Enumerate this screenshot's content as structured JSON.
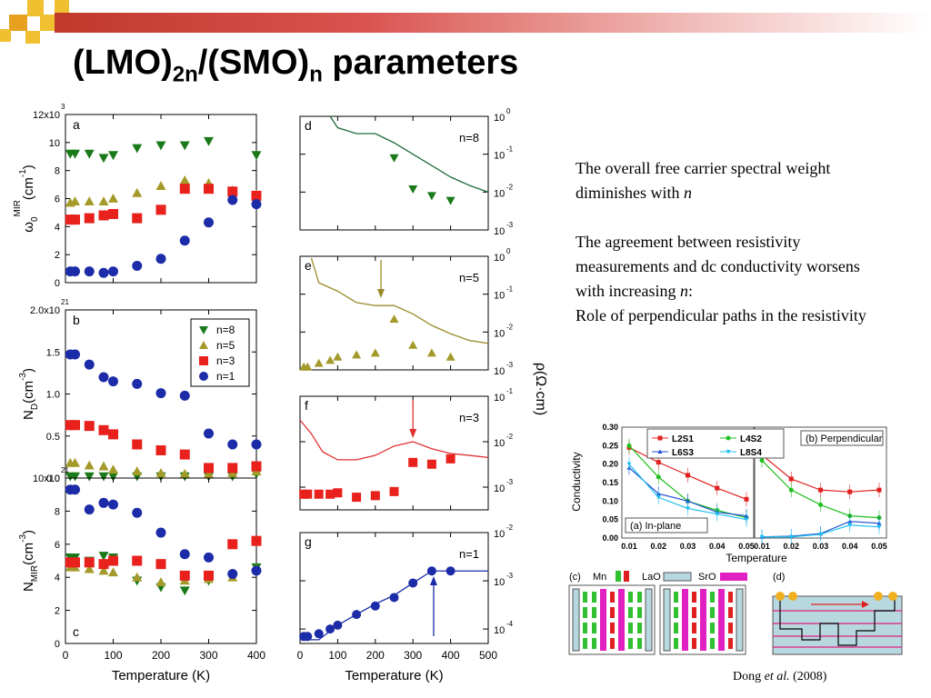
{
  "slide": {
    "title_main": "(LMO)",
    "title_sub1": "2n",
    "title_mid": "/(SMO)",
    "title_sub2": "n",
    "title_end": " parameters",
    "notes": [
      {
        "text": "The overall free carrier spectral weight diminishes with ",
        "em": "n",
        "after": ""
      },
      {
        "text": "The agreement between resistivity measurements and dc conductivity worsens with increasing ",
        "em": "n",
        "after": ":"
      },
      {
        "text": "Role of perpendicular paths in the resistivity",
        "em": "",
        "after": ""
      }
    ],
    "citation_author": "Dong ",
    "citation_etal": "et al.",
    "citation_year": " (2008)"
  },
  "colors": {
    "n8": "#1a7a1a",
    "n5": "#a49a2a",
    "n3": "#e8211c",
    "n1": "#1c2ba8",
    "line_d": "#1f6b3a",
    "line_e": "#9a8a2a",
    "line_f": "#e03030",
    "line_g": "#1c2ba8",
    "L2S1": "#e02020",
    "L4S2": "#20c020",
    "L6S3": "#2050d0",
    "L8S4": "#20c0f0",
    "topbar": "#c0392b",
    "accent": "#e8a020"
  },
  "chart_data": [
    {
      "id": "a",
      "type": "scatter",
      "label": "a",
      "ylabel": "ω0 MIR (cm -1)",
      "ylabel_main": "ω",
      "ylabel_sub": "0",
      "ylabel_sup": "MIR",
      "ylabel_unit": "(cm",
      "ylabel_unit_sup": "-1",
      "ylabel_close": ")",
      "xlim": [
        0,
        400
      ],
      "ylim": [
        0,
        12000
      ],
      "yticks": [
        "0",
        "2",
        "4",
        "6",
        "8",
        "10",
        "12x10"
      ],
      "yexp": "3",
      "series": [
        {
          "name": "n=8",
          "marker": "tri-down",
          "x": [
            10,
            20,
            50,
            80,
            100,
            150,
            200,
            250,
            300,
            400
          ],
          "y": [
            9200,
            9200,
            9200,
            8900,
            9100,
            9600,
            9800,
            9800,
            10100,
            9100
          ]
        },
        {
          "name": "n=5",
          "marker": "tri-up",
          "x": [
            10,
            20,
            50,
            80,
            100,
            150,
            200,
            250,
            300,
            350,
            400
          ],
          "y": [
            5700,
            5800,
            5800,
            5800,
            6000,
            6400,
            6900,
            7300,
            7100,
            6600,
            6300
          ]
        },
        {
          "name": "n=3",
          "marker": "square",
          "x": [
            10,
            20,
            50,
            80,
            100,
            150,
            200,
            250,
            300,
            350,
            400
          ],
          "y": [
            4500,
            4500,
            4600,
            4800,
            4900,
            4600,
            5200,
            6700,
            6700,
            6500,
            6200
          ]
        },
        {
          "name": "n=1",
          "marker": "circle",
          "x": [
            10,
            20,
            50,
            80,
            100,
            150,
            200,
            250,
            300,
            350,
            400
          ],
          "y": [
            800,
            800,
            800,
            700,
            800,
            1200,
            1700,
            3000,
            4300,
            5900,
            5600
          ]
        }
      ]
    },
    {
      "id": "b",
      "type": "scatter",
      "label": "b",
      "ylabel_main": "N",
      "ylabel_sub": "D",
      "ylabel_unit": "(cm",
      "ylabel_unit_sup": "-3",
      "ylabel_close": ")",
      "xlim": [
        0,
        400
      ],
      "ylim": [
        0,
        2e+21
      ],
      "yticks": [
        "0.0",
        "0.5",
        "1.0",
        "1.5",
        "2.0x10"
      ],
      "yexp": "21",
      "legend": {
        "placement": "top-right",
        "entries": [
          "n=8",
          "n=5",
          "n=3",
          "n=1"
        ]
      },
      "series": [
        {
          "name": "n=8",
          "marker": "tri-down",
          "x": [
            10,
            20,
            50,
            80,
            100,
            150,
            200,
            250,
            300,
            350,
            400
          ],
          "y": [
            2e+19,
            2e+19,
            2e+19,
            2e+19,
            2e+19,
            2e+19,
            2e+19,
            2e+19,
            2e+19,
            2e+19,
            5e+19
          ]
        },
        {
          "name": "n=5",
          "marker": "tri-up",
          "x": [
            10,
            20,
            50,
            80,
            100,
            150,
            200,
            250,
            300,
            350,
            400
          ],
          "y": [
            1.8e+20,
            1.8e+20,
            1.5e+20,
            1.4e+20,
            1e+20,
            8e+19,
            6e+19,
            5e+19,
            5e+19,
            6e+19,
            8e+19
          ]
        },
        {
          "name": "n=3",
          "marker": "square",
          "x": [
            10,
            20,
            50,
            80,
            100,
            150,
            200,
            250,
            300,
            350,
            400
          ],
          "y": [
            6.3e+20,
            6.3e+20,
            6.2e+20,
            5.7e+20,
            5.2e+20,
            4e+20,
            3.3e+20,
            2.8e+20,
            1.2e+20,
            1.2e+20,
            1.4e+20
          ]
        },
        {
          "name": "n=1",
          "marker": "circle",
          "x": [
            10,
            20,
            50,
            80,
            100,
            150,
            200,
            250,
            300,
            350,
            400
          ],
          "y": [
            1.47e+21,
            1.47e+21,
            1.35e+21,
            1.2e+21,
            1.15e+21,
            1.12e+21,
            1.01e+21,
            9.8e+20,
            5.3e+20,
            4e+20,
            4e+20
          ]
        }
      ]
    },
    {
      "id": "c",
      "type": "scatter",
      "label": "c",
      "ylabel_main": "N",
      "ylabel_sub": "MIR",
      "ylabel_unit": "(cm",
      "ylabel_unit_sup": "-3",
      "ylabel_close": ")",
      "xlim": [
        0,
        400
      ],
      "ylim": [
        0,
        1e+22
      ],
      "xlabel": "Temperature (K)",
      "xticks": [
        "0",
        "100",
        "200",
        "300",
        "400"
      ],
      "yticks": [
        "0",
        "2",
        "4",
        "6",
        "8",
        "10x10"
      ],
      "yexp": "21",
      "series": [
        {
          "name": "n=8",
          "marker": "tri-down",
          "x": [
            10,
            20,
            50,
            80,
            100,
            150,
            200,
            250,
            300,
            350,
            400
          ],
          "y": [
            5.2e+21,
            5.2e+21,
            5e+21,
            5.3e+21,
            5.2e+21,
            3.8e+21,
            3.4e+21,
            3.2e+21,
            3.8e+21,
            4.1e+21,
            4.6e+21
          ]
        },
        {
          "name": "n=5",
          "marker": "tri-up",
          "x": [
            10,
            20,
            50,
            80,
            100,
            150,
            200,
            250,
            300,
            350,
            400
          ],
          "y": [
            4.6e+21,
            4.6e+21,
            4.5e+21,
            4.4e+21,
            4.3e+21,
            4e+21,
            3.7e+21,
            3.8e+21,
            3.9e+21,
            4e+21,
            4.5e+21
          ]
        },
        {
          "name": "n=3",
          "marker": "square",
          "x": [
            10,
            20,
            50,
            80,
            100,
            150,
            200,
            250,
            300,
            350,
            400
          ],
          "y": [
            4.9e+21,
            4.9e+21,
            4.9e+21,
            4.8e+21,
            5e+21,
            5e+21,
            4.8e+21,
            4.1e+21,
            4.1e+21,
            6e+21,
            6.2e+21
          ]
        },
        {
          "name": "n=1",
          "marker": "circle",
          "x": [
            10,
            20,
            50,
            80,
            100,
            150,
            200,
            250,
            300,
            350,
            400
          ],
          "y": [
            9.3e+21,
            9.3e+21,
            8.1e+21,
            8.5e+21,
            8.4e+21,
            7.9e+21,
            6.7e+21,
            5.4e+21,
            5.2e+21,
            4.2e+21,
            4.4e+21
          ]
        }
      ]
    },
    {
      "id": "d",
      "type": "line+scatter",
      "label": "d",
      "annot": "n=8",
      "yscale": "log",
      "xlim": [
        0,
        500
      ],
      "ylog": [
        -3,
        0
      ],
      "yticks_base": [
        "10",
        "10",
        "10",
        "10"
      ],
      "yticks_exp": [
        "0",
        "-1",
        "-2",
        "-3"
      ],
      "curve": {
        "x": [
          80,
          100,
          150,
          200,
          250,
          300,
          350,
          400,
          450,
          500
        ],
        "y": [
          1.0,
          0.5,
          0.35,
          0.35,
          0.2,
          0.1,
          0.05,
          0.025,
          0.015,
          0.01
        ]
      },
      "points": {
        "x": [
          250,
          300,
          350,
          400
        ],
        "y": [
          0.08,
          0.012,
          0.008,
          0.006
        ]
      }
    },
    {
      "id": "e",
      "type": "line+scatter",
      "label": "e",
      "annot": "n=5",
      "yscale": "log",
      "xlim": [
        0,
        500
      ],
      "ylog": [
        -3,
        0
      ],
      "yticks_base": [
        "10",
        "10",
        "10",
        "10"
      ],
      "yticks_exp": [
        "0",
        "-1",
        "-2",
        "-3"
      ],
      "curve": {
        "x": [
          30,
          50,
          100,
          150,
          200,
          250,
          300,
          350,
          400,
          450,
          500
        ],
        "y": [
          0.9,
          0.2,
          0.12,
          0.06,
          0.05,
          0.05,
          0.03,
          0.015,
          0.009,
          0.006,
          0.005
        ]
      },
      "points": {
        "x": [
          10,
          20,
          50,
          80,
          100,
          150,
          200,
          250,
          300,
          350,
          400
        ],
        "y": [
          0.0012,
          0.0012,
          0.0015,
          0.0018,
          0.0022,
          0.0025,
          0.0028,
          0.022,
          0.0045,
          0.0028,
          0.0022
        ]
      },
      "arrow_x": 215
    },
    {
      "id": "f",
      "type": "line+scatter",
      "label": "f",
      "annot": "n=3",
      "yscale": "log",
      "xlim": [
        0,
        500
      ],
      "ylog": [
        -3.5,
        -1
      ],
      "yticks_base": [
        "10",
        "10",
        "10"
      ],
      "yticks_exp": [
        "-1",
        "-2",
        "-3"
      ],
      "curve": {
        "x": [
          0,
          30,
          60,
          100,
          150,
          200,
          250,
          300,
          350,
          400,
          450,
          500
        ],
        "y": [
          0.03,
          0.015,
          0.006,
          0.004,
          0.004,
          0.005,
          0.008,
          0.01,
          0.007,
          0.0055,
          0.005,
          0.0045
        ]
      },
      "points": {
        "x": [
          10,
          20,
          50,
          80,
          100,
          150,
          200,
          250,
          300,
          350,
          400
        ],
        "y": [
          0.0007,
          0.0007,
          0.0007,
          0.0007,
          0.00075,
          0.0006,
          0.00065,
          0.0008,
          0.0035,
          0.0032,
          0.0042
        ]
      },
      "arrow_x": 300
    },
    {
      "id": "g",
      "type": "line+scatter",
      "label": "g",
      "annot": "n=1",
      "yscale": "log",
      "xlim": [
        0,
        500
      ],
      "xlabel": "Temperature (K)",
      "xticks": [
        "0",
        "100",
        "200",
        "300",
        "400",
        "500"
      ],
      "ylog": [
        -4.3,
        -2
      ],
      "yticks_base": [
        "10",
        "10",
        "10"
      ],
      "yticks_exp": [
        "-2",
        "-3",
        "-4"
      ],
      "curve": {
        "x": [
          0,
          50,
          100,
          150,
          200,
          250,
          300,
          350,
          400,
          450,
          500
        ],
        "y": [
          6e-05,
          6e-05,
          0.00012,
          0.0002,
          0.00033,
          0.0005,
          0.0009,
          0.0016,
          0.0016,
          0.0016,
          0.0016
        ]
      },
      "points": {
        "x": [
          10,
          20,
          50,
          80,
          100,
          150,
          200,
          250,
          300,
          350,
          400
        ],
        "y": [
          7e-05,
          7e-05,
          8e-05,
          0.0001,
          0.00012,
          0.0002,
          0.0003,
          0.00045,
          0.0009,
          0.0016,
          0.0016
        ]
      },
      "arrow_x": 355
    },
    {
      "id": "inset",
      "type": "line",
      "ylabel": "Conductivity",
      "xlabel": "Temperature",
      "panel_a": "(a) In-plane",
      "panel_b": "(b) Perpendicular",
      "yticks": [
        "0.00",
        "0.05",
        "0.10",
        "0.15",
        "0.20",
        "0.25",
        "0.30"
      ],
      "xticks": [
        "0.01",
        "0.02",
        "0.03",
        "0.04",
        "0.05"
      ],
      "legend": [
        "L2S1",
        "L4S2",
        "L6S3",
        "L8S4"
      ],
      "inplane": {
        "L2S1": [
          0.245,
          0.205,
          0.17,
          0.135,
          0.105
        ],
        "L4S2": [
          0.25,
          0.165,
          0.1,
          0.075,
          0.055
        ],
        "L6S3": [
          0.19,
          0.12,
          0.1,
          0.07,
          0.06
        ],
        "L8S4": [
          0.2,
          0.11,
          0.08,
          0.065,
          0.05
        ]
      },
      "perp": {
        "L2S1": [
          0.225,
          0.16,
          0.13,
          0.125,
          0.13
        ],
        "L4S2": [
          0.21,
          0.13,
          0.09,
          0.06,
          0.055
        ],
        "L6S3": [
          0.003,
          0.005,
          0.012,
          0.045,
          0.04
        ],
        "L8S4": [
          0.003,
          0.003,
          0.01,
          0.035,
          0.03
        ]
      },
      "schematic": {
        "label_c": "(c)",
        "mn": "Mn",
        "lao": "LaO",
        "sro": "SrO",
        "label_d": "(d)"
      }
    }
  ],
  "shared_labels": {
    "temperature": "Temperature (K)",
    "rho_label": "ρ(Ω·cm)"
  }
}
